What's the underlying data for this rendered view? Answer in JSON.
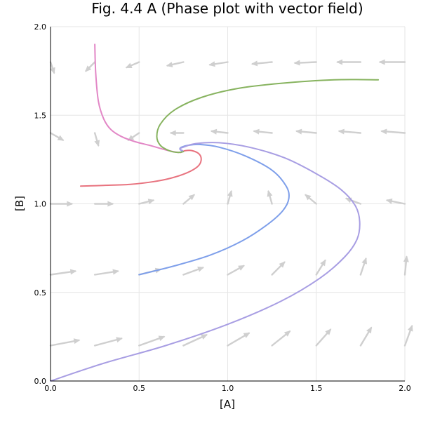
{
  "chart_data": {
    "type": "line",
    "title": "Fig. 4.4 A (Phase plot with vector field)",
    "xlabel": "[A]",
    "ylabel": "[B]",
    "xlim": [
      0,
      2
    ],
    "ylim": [
      0,
      2
    ],
    "xticks": [
      0.0,
      0.5,
      1.0,
      1.5,
      2.0
    ],
    "yticks": [
      0.0,
      0.5,
      1.0,
      1.5,
      2.0
    ],
    "xtick_labels": [
      "0.0",
      "0.5",
      "1.0",
      "1.5",
      "2.0"
    ],
    "ytick_labels": [
      "0.0",
      "0.5",
      "1.0",
      "1.5",
      "2.0"
    ],
    "grid": true,
    "legend": "none",
    "colors": {
      "grid": "#e6e6e6",
      "vector": "#cfcfcf",
      "pink": "#e287c6",
      "red": "#e8737f",
      "green": "#87b35f",
      "blue": "#7e9fea",
      "purple": "#a89ee3"
    },
    "vector_field": {
      "type": "quiver",
      "description_units": "data",
      "arrows": [
        {
          "x": 0.0,
          "y": 1.8,
          "dx": 0.02,
          "dy": -0.06
        },
        {
          "x": 0.25,
          "y": 1.8,
          "dx": -0.05,
          "dy": -0.05
        },
        {
          "x": 0.5,
          "y": 1.8,
          "dx": -0.07,
          "dy": -0.03
        },
        {
          "x": 0.75,
          "y": 1.8,
          "dx": -0.09,
          "dy": -0.02
        },
        {
          "x": 1.0,
          "y": 1.8,
          "dx": -0.1,
          "dy": -0.015
        },
        {
          "x": 1.25,
          "y": 1.8,
          "dx": -0.11,
          "dy": -0.01
        },
        {
          "x": 1.5,
          "y": 1.8,
          "dx": -0.12,
          "dy": -0.005
        },
        {
          "x": 1.75,
          "y": 1.8,
          "dx": -0.13,
          "dy": 0.0
        },
        {
          "x": 2.0,
          "y": 1.8,
          "dx": -0.14,
          "dy": 0.0
        },
        {
          "x": 0.0,
          "y": 1.4,
          "dx": 0.07,
          "dy": -0.04
        },
        {
          "x": 0.25,
          "y": 1.4,
          "dx": 0.02,
          "dy": -0.07
        },
        {
          "x": 0.5,
          "y": 1.4,
          "dx": -0.06,
          "dy": -0.04
        },
        {
          "x": 0.75,
          "y": 1.4,
          "dx": -0.07,
          "dy": 0.0
        },
        {
          "x": 1.0,
          "y": 1.4,
          "dx": -0.09,
          "dy": 0.01
        },
        {
          "x": 1.25,
          "y": 1.4,
          "dx": -0.1,
          "dy": 0.01
        },
        {
          "x": 1.5,
          "y": 1.4,
          "dx": -0.11,
          "dy": 0.01
        },
        {
          "x": 1.75,
          "y": 1.4,
          "dx": -0.12,
          "dy": 0.01
        },
        {
          "x": 2.0,
          "y": 1.4,
          "dx": -0.13,
          "dy": 0.01
        },
        {
          "x": 0.0,
          "y": 1.0,
          "dx": 0.12,
          "dy": 0.0
        },
        {
          "x": 0.25,
          "y": 1.0,
          "dx": 0.1,
          "dy": 0.0
        },
        {
          "x": 0.5,
          "y": 1.0,
          "dx": 0.08,
          "dy": 0.02
        },
        {
          "x": 0.75,
          "y": 1.0,
          "dx": 0.06,
          "dy": 0.05
        },
        {
          "x": 1.0,
          "y": 1.0,
          "dx": 0.02,
          "dy": 0.07
        },
        {
          "x": 1.25,
          "y": 1.0,
          "dx": -0.02,
          "dy": 0.07
        },
        {
          "x": 1.5,
          "y": 1.0,
          "dx": -0.06,
          "dy": 0.05
        },
        {
          "x": 1.75,
          "y": 1.0,
          "dx": -0.08,
          "dy": 0.03
        },
        {
          "x": 2.0,
          "y": 1.0,
          "dx": -0.1,
          "dy": 0.02
        },
        {
          "x": 0.0,
          "y": 0.6,
          "dx": 0.14,
          "dy": 0.02
        },
        {
          "x": 0.25,
          "y": 0.6,
          "dx": 0.13,
          "dy": 0.02
        },
        {
          "x": 0.5,
          "y": 0.6,
          "dx": 0.12,
          "dy": 0.03
        },
        {
          "x": 0.75,
          "y": 0.6,
          "dx": 0.11,
          "dy": 0.04
        },
        {
          "x": 1.0,
          "y": 0.6,
          "dx": 0.09,
          "dy": 0.05
        },
        {
          "x": 1.25,
          "y": 0.6,
          "dx": 0.07,
          "dy": 0.07
        },
        {
          "x": 1.5,
          "y": 0.6,
          "dx": 0.05,
          "dy": 0.08
        },
        {
          "x": 1.75,
          "y": 0.6,
          "dx": 0.03,
          "dy": 0.09
        },
        {
          "x": 2.0,
          "y": 0.6,
          "dx": 0.01,
          "dy": 0.1
        },
        {
          "x": 0.0,
          "y": 0.2,
          "dx": 0.16,
          "dy": 0.03
        },
        {
          "x": 0.25,
          "y": 0.2,
          "dx": 0.15,
          "dy": 0.04
        },
        {
          "x": 0.5,
          "y": 0.2,
          "dx": 0.14,
          "dy": 0.05
        },
        {
          "x": 0.75,
          "y": 0.2,
          "dx": 0.13,
          "dy": 0.06
        },
        {
          "x": 1.0,
          "y": 0.2,
          "dx": 0.12,
          "dy": 0.07
        },
        {
          "x": 1.25,
          "y": 0.2,
          "dx": 0.1,
          "dy": 0.08
        },
        {
          "x": 1.5,
          "y": 0.2,
          "dx": 0.08,
          "dy": 0.09
        },
        {
          "x": 1.75,
          "y": 0.2,
          "dx": 0.06,
          "dy": 0.1
        },
        {
          "x": 2.0,
          "y": 0.2,
          "dx": 0.04,
          "dy": 0.11
        }
      ]
    },
    "series": [
      {
        "color": "pink",
        "x": [
          0.25,
          0.255,
          0.27,
          0.3,
          0.34,
          0.4,
          0.48,
          0.56,
          0.63,
          0.69,
          0.725
        ],
        "y": [
          1.9,
          1.74,
          1.58,
          1.48,
          1.42,
          1.38,
          1.35,
          1.33,
          1.31,
          1.295,
          1.29
        ]
      },
      {
        "color": "red",
        "x": [
          0.17,
          0.3,
          0.45,
          0.58,
          0.68,
          0.77,
          0.83,
          0.85,
          0.84,
          0.8,
          0.76,
          0.735
        ],
        "y": [
          1.1,
          1.104,
          1.11,
          1.125,
          1.145,
          1.175,
          1.21,
          1.245,
          1.28,
          1.3,
          1.3,
          1.29
        ]
      },
      {
        "color": "green",
        "x": [
          1.85,
          1.6,
          1.3,
          1.05,
          0.85,
          0.7,
          0.62,
          0.6,
          0.62,
          0.67,
          0.72,
          0.75
        ],
        "y": [
          1.7,
          1.7,
          1.68,
          1.65,
          1.6,
          1.53,
          1.45,
          1.38,
          1.33,
          1.3,
          1.29,
          1.295
        ]
      },
      {
        "color": "blue",
        "x": [
          0.5,
          0.7,
          0.9,
          1.08,
          1.22,
          1.31,
          1.345,
          1.33,
          1.25,
          1.1,
          0.95,
          0.84,
          0.775,
          0.74,
          0.73,
          0.74
        ],
        "y": [
          0.6,
          0.65,
          0.71,
          0.79,
          0.88,
          0.96,
          1.03,
          1.1,
          1.19,
          1.27,
          1.32,
          1.335,
          1.33,
          1.32,
          1.31,
          1.3
        ]
      },
      {
        "color": "purple",
        "x": [
          0.0,
          0.3,
          0.65,
          1.0,
          1.3,
          1.52,
          1.66,
          1.73,
          1.745,
          1.72,
          1.64,
          1.5,
          1.32,
          1.12,
          0.95,
          0.82,
          0.75,
          0.73,
          0.745
        ],
        "y": [
          0.0,
          0.1,
          0.2,
          0.32,
          0.45,
          0.58,
          0.7,
          0.8,
          0.9,
          0.99,
          1.08,
          1.17,
          1.26,
          1.32,
          1.345,
          1.34,
          1.32,
          1.31,
          1.3
        ]
      }
    ]
  }
}
